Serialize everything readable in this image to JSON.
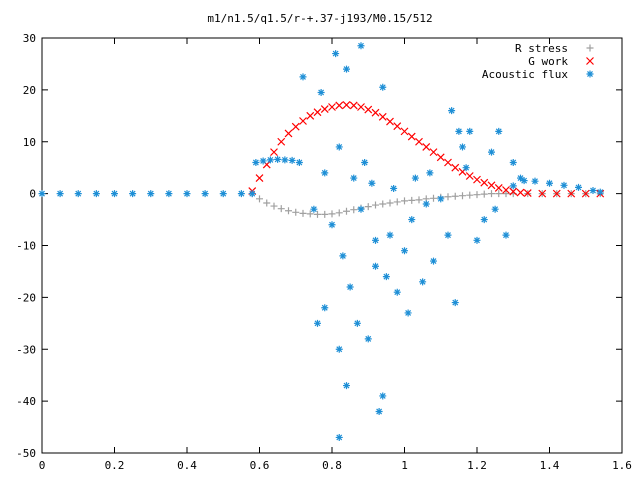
{
  "chart_data": {
    "type": "scatter",
    "title": "m1/n1.5/q1.5/r-+.37-j193/M0.15/512",
    "xlabel": "",
    "ylabel": "",
    "xlim": [
      0,
      1.6
    ],
    "ylim": [
      -50,
      30
    ],
    "x_ticks": [
      0,
      0.2,
      0.4,
      0.6,
      0.8,
      1.0,
      1.2,
      1.4,
      1.6
    ],
    "x_tick_labels": [
      "0",
      "0.2",
      "0.4",
      "0.6",
      "0.8",
      "1",
      "1.2",
      "1.4",
      "1.6"
    ],
    "y_ticks": [
      -50,
      -40,
      -30,
      -20,
      -10,
      0,
      10,
      20,
      30
    ],
    "y_tick_labels": [
      "-50",
      "-40",
      "-30",
      "-20",
      "-10",
      "0",
      "10",
      "20",
      "30"
    ],
    "grid": false,
    "legend_position": "top-right",
    "series": [
      {
        "name": "R stress",
        "marker": "plus",
        "color": "#a0a0a0",
        "points": [
          [
            0.58,
            0.0
          ],
          [
            0.6,
            -1.0
          ],
          [
            0.62,
            -1.8
          ],
          [
            0.64,
            -2.4
          ],
          [
            0.66,
            -2.9
          ],
          [
            0.68,
            -3.3
          ],
          [
            0.7,
            -3.6
          ],
          [
            0.72,
            -3.8
          ],
          [
            0.74,
            -3.9
          ],
          [
            0.76,
            -4.0
          ],
          [
            0.78,
            -4.0
          ],
          [
            0.8,
            -3.9
          ],
          [
            0.82,
            -3.7
          ],
          [
            0.84,
            -3.4
          ],
          [
            0.86,
            -3.1
          ],
          [
            0.88,
            -2.8
          ],
          [
            0.9,
            -2.5
          ],
          [
            0.92,
            -2.2
          ],
          [
            0.94,
            -2.0
          ],
          [
            0.96,
            -1.8
          ],
          [
            0.98,
            -1.6
          ],
          [
            1.0,
            -1.4
          ],
          [
            1.02,
            -1.3
          ],
          [
            1.04,
            -1.2
          ],
          [
            1.06,
            -1.0
          ],
          [
            1.08,
            -0.9
          ],
          [
            1.1,
            -0.7
          ],
          [
            1.12,
            -0.6
          ],
          [
            1.14,
            -0.5
          ],
          [
            1.16,
            -0.4
          ],
          [
            1.18,
            -0.3
          ],
          [
            1.2,
            -0.2
          ],
          [
            1.22,
            -0.1
          ],
          [
            1.24,
            0.0
          ],
          [
            1.26,
            0.0
          ],
          [
            1.28,
            0.0
          ],
          [
            1.3,
            0.0
          ],
          [
            1.34,
            0.0
          ],
          [
            1.38,
            0.0
          ],
          [
            1.42,
            0.0
          ],
          [
            1.46,
            0.0
          ],
          [
            1.5,
            0.0
          ],
          [
            1.54,
            0.0
          ]
        ]
      },
      {
        "name": "G work",
        "marker": "cross",
        "color": "#ff0000",
        "points": [
          [
            0.58,
            0.5
          ],
          [
            0.6,
            3.0
          ],
          [
            0.62,
            5.6
          ],
          [
            0.64,
            8.0
          ],
          [
            0.66,
            10.0
          ],
          [
            0.68,
            11.6
          ],
          [
            0.7,
            12.9
          ],
          [
            0.72,
            14.0
          ],
          [
            0.74,
            15.0
          ],
          [
            0.76,
            15.7
          ],
          [
            0.78,
            16.3
          ],
          [
            0.8,
            16.7
          ],
          [
            0.82,
            17.0
          ],
          [
            0.84,
            17.1
          ],
          [
            0.86,
            17.0
          ],
          [
            0.88,
            16.7
          ],
          [
            0.9,
            16.2
          ],
          [
            0.92,
            15.6
          ],
          [
            0.94,
            14.8
          ],
          [
            0.96,
            13.9
          ],
          [
            0.98,
            13.0
          ],
          [
            1.0,
            12.0
          ],
          [
            1.02,
            11.0
          ],
          [
            1.04,
            10.0
          ],
          [
            1.06,
            9.0
          ],
          [
            1.08,
            8.0
          ],
          [
            1.1,
            7.0
          ],
          [
            1.12,
            6.0
          ],
          [
            1.14,
            5.0
          ],
          [
            1.16,
            4.2
          ],
          [
            1.18,
            3.4
          ],
          [
            1.2,
            2.7
          ],
          [
            1.22,
            2.1
          ],
          [
            1.24,
            1.6
          ],
          [
            1.26,
            1.1
          ],
          [
            1.28,
            0.7
          ],
          [
            1.3,
            0.4
          ],
          [
            1.32,
            0.2
          ],
          [
            1.34,
            0.1
          ],
          [
            1.38,
            0.0
          ],
          [
            1.42,
            0.0
          ],
          [
            1.46,
            0.0
          ],
          [
            1.5,
            0.0
          ],
          [
            1.54,
            0.0
          ]
        ]
      },
      {
        "name": "Acoustic flux",
        "marker": "star",
        "color": "#1e8fd6",
        "points": [
          [
            0.0,
            0.0
          ],
          [
            0.05,
            0.0
          ],
          [
            0.1,
            0.0
          ],
          [
            0.15,
            0.0
          ],
          [
            0.2,
            0.0
          ],
          [
            0.25,
            0.0
          ],
          [
            0.3,
            0.0
          ],
          [
            0.35,
            0.0
          ],
          [
            0.4,
            0.0
          ],
          [
            0.45,
            0.0
          ],
          [
            0.5,
            0.0
          ],
          [
            0.55,
            0.0
          ],
          [
            0.58,
            0.0
          ],
          [
            0.59,
            6.0
          ],
          [
            0.61,
            6.3
          ],
          [
            0.63,
            6.5
          ],
          [
            0.65,
            6.6
          ],
          [
            0.67,
            6.5
          ],
          [
            0.69,
            6.4
          ],
          [
            0.71,
            6.0
          ],
          [
            0.72,
            22.5
          ],
          [
            0.77,
            19.5
          ],
          [
            0.81,
            27.0
          ],
          [
            0.84,
            24.0
          ],
          [
            0.88,
            28.5
          ],
          [
            0.94,
            20.5
          ],
          [
            0.75,
            -3.0
          ],
          [
            0.78,
            4.0
          ],
          [
            0.8,
            -6.0
          ],
          [
            0.82,
            9.0
          ],
          [
            0.83,
            -12.0
          ],
          [
            0.85,
            -18.0
          ],
          [
            0.86,
            3.0
          ],
          [
            0.87,
            -25.0
          ],
          [
            0.88,
            -3.0
          ],
          [
            0.89,
            6.0
          ],
          [
            0.9,
            -28.0
          ],
          [
            0.91,
            2.0
          ],
          [
            0.92,
            -9.0
          ],
          [
            0.92,
            -14.0
          ],
          [
            0.93,
            -42.0
          ],
          [
            0.94,
            -39.0
          ],
          [
            0.95,
            -16.0
          ],
          [
            0.96,
            -8.0
          ],
          [
            0.97,
            1.0
          ],
          [
            0.98,
            -19.0
          ],
          [
            1.0,
            -11.0
          ],
          [
            1.01,
            -23.0
          ],
          [
            1.02,
            -5.0
          ],
          [
            1.03,
            3.0
          ],
          [
            1.05,
            -17.0
          ],
          [
            1.06,
            -2.0
          ],
          [
            1.07,
            4.0
          ],
          [
            1.08,
            -13.0
          ],
          [
            1.1,
            -1.0
          ],
          [
            1.12,
            -8.0
          ],
          [
            1.13,
            16.0
          ],
          [
            1.14,
            -21.0
          ],
          [
            1.15,
            12.0
          ],
          [
            1.16,
            9.0
          ],
          [
            1.17,
            5.0
          ],
          [
            1.18,
            12.0
          ],
          [
            1.2,
            -9.0
          ],
          [
            1.22,
            -5.0
          ],
          [
            1.24,
            8.0
          ],
          [
            1.25,
            -3.0
          ],
          [
            1.26,
            12.0
          ],
          [
            1.28,
            -8.0
          ],
          [
            1.3,
            6.0
          ],
          [
            1.32,
            3.0
          ],
          [
            0.84,
            -37.0
          ],
          [
            0.82,
            -30.0
          ],
          [
            0.82,
            -47.0
          ],
          [
            0.78,
            -22.0
          ],
          [
            0.76,
            -25.0
          ],
          [
            1.3,
            1.5
          ],
          [
            1.33,
            2.5
          ],
          [
            1.36,
            2.4
          ],
          [
            1.4,
            2.0
          ],
          [
            1.44,
            1.6
          ],
          [
            1.48,
            1.2
          ],
          [
            1.52,
            0.6
          ],
          [
            1.54,
            0.3
          ]
        ]
      }
    ]
  }
}
